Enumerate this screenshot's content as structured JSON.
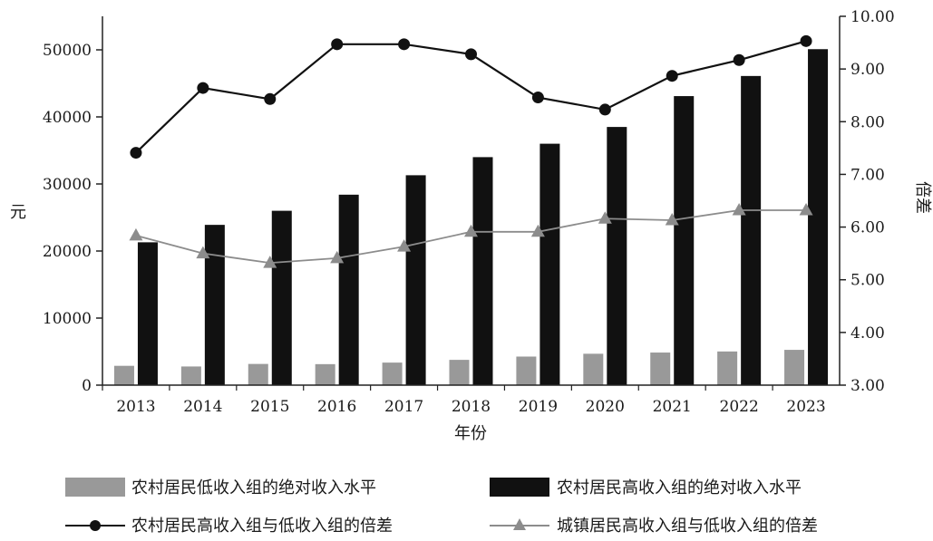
{
  "chart_data": {
    "type": "bar",
    "categories": [
      "2013",
      "2014",
      "2015",
      "2016",
      "2017",
      "2018",
      "2019",
      "2020",
      "2021",
      "2022",
      "2023"
    ],
    "xlabel": "年份",
    "ylabel_left": "元",
    "ylabel_right": "倍差",
    "ylim_left": [
      0,
      55000
    ],
    "ylim_right": [
      3.0,
      10.0
    ],
    "left_ticks": [
      "0",
      "10000",
      "20000",
      "30000",
      "40000",
      "50000"
    ],
    "right_ticks": [
      "3.00",
      "4.00",
      "5.00",
      "6.00",
      "7.00",
      "8.00",
      "9.00",
      "10.00"
    ],
    "grid": false,
    "legend_position": "bottom",
    "series": [
      {
        "name": "农村居民低收入组的绝对收入水平",
        "kind": "bar",
        "axis": "left",
        "color": "#999999",
        "values": [
          2880,
          2780,
          3160,
          3130,
          3360,
          3770,
          4260,
          4680,
          4860,
          5020,
          5260
        ]
      },
      {
        "name": "农村居民高收入组的绝对收入水平",
        "kind": "bar",
        "axis": "left",
        "color": "#111111",
        "values": [
          21300,
          23900,
          26000,
          28400,
          31300,
          34000,
          36000,
          38500,
          43100,
          46100,
          50100
        ]
      },
      {
        "name": "农村居民高收入组与低收入组的倍差",
        "kind": "line",
        "marker": "circle",
        "axis": "right",
        "color": "#111111",
        "values": [
          7.41,
          8.64,
          8.43,
          9.47,
          9.47,
          9.28,
          8.46,
          8.23,
          8.87,
          9.17,
          9.53
        ]
      },
      {
        "name": "城镇居民高收入组与低收入组的倍差",
        "kind": "line",
        "marker": "triangle",
        "axis": "right",
        "color": "#8c8c8c",
        "values": [
          5.84,
          5.5,
          5.32,
          5.41,
          5.63,
          5.91,
          5.91,
          6.16,
          6.13,
          6.32,
          6.32
        ]
      }
    ]
  }
}
